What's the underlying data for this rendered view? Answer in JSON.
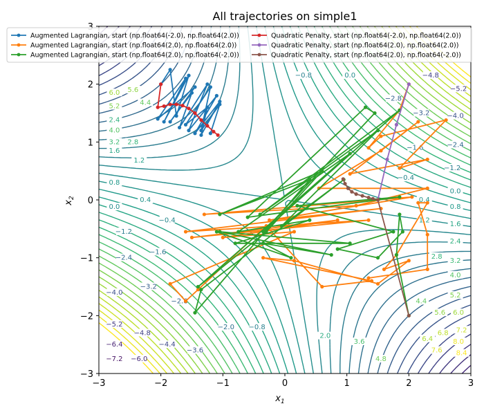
{
  "chart_data": {
    "type": "line",
    "title": "All trajectories on simple1",
    "xlabel_base": "x",
    "xlabel_sub": "1",
    "ylabel_base": "x",
    "ylabel_sub": "2",
    "xlim": [
      -3,
      3
    ],
    "ylim": [
      -3,
      3
    ],
    "x_ticks": [
      -3,
      -2,
      -1,
      0,
      1,
      2,
      3
    ],
    "y_ticks": [
      -3,
      -2,
      -1,
      0,
      1,
      2,
      3
    ],
    "x_tick_labels": [
      "−3",
      "−2",
      "−1",
      "0",
      "1",
      "2",
      "3"
    ],
    "y_tick_labels": [
      "−3",
      "−2",
      "−1",
      "0",
      "1",
      "2",
      "3"
    ],
    "legend_position": "top",
    "contour": {
      "function": "f(x1,x2) = x1*x2 + 0.2*(x1^2 + x2^2) scaled",
      "level_step": 0.4,
      "level_min": -8.0,
      "level_max": 8.4,
      "colormap": "viridis"
    },
    "contour_labels": [
      {
        "text": "−7.2",
        "x": -2.75,
        "y": -2.75
      },
      {
        "text": "−6.4",
        "x": -2.75,
        "y": -2.5
      },
      {
        "text": "−6.0",
        "x": -2.35,
        "y": -2.75
      },
      {
        "text": "−5.2",
        "x": -2.75,
        "y": -2.15
      },
      {
        "text": "−4.8",
        "x": -2.3,
        "y": -2.3
      },
      {
        "text": "−4.4",
        "x": -1.9,
        "y": -2.5
      },
      {
        "text": "−4.0",
        "x": -2.75,
        "y": -1.6
      },
      {
        "text": "−3.6",
        "x": -1.45,
        "y": -2.6
      },
      {
        "text": "−3.2",
        "x": -2.2,
        "y": -1.5
      },
      {
        "text": "−2.8",
        "x": -1.7,
        "y": -1.75
      },
      {
        "text": "−2.4",
        "x": -2.6,
        "y": -1.0
      },
      {
        "text": "−2.0",
        "x": -0.95,
        "y": -2.2
      },
      {
        "text": "−1.6",
        "x": -2.05,
        "y": -0.9
      },
      {
        "text": "−1.2",
        "x": -2.6,
        "y": -0.55
      },
      {
        "text": "−0.8",
        "x": -0.45,
        "y": -2.2
      },
      {
        "text": "−0.4",
        "x": -1.9,
        "y": -0.35
      },
      {
        "text": "0.0",
        "x": -2.75,
        "y": -0.12
      },
      {
        "text": "0.4",
        "x": -2.25,
        "y": 0.0
      },
      {
        "text": "0.8",
        "x": -2.75,
        "y": 0.3
      },
      {
        "text": "1.2",
        "x": -2.35,
        "y": 0.68
      },
      {
        "text": "1.6",
        "x": -2.75,
        "y": 0.85
      },
      {
        "text": "2.0",
        "x": 0.65,
        "y": -2.35
      },
      {
        "text": "2.4",
        "x": -2.75,
        "y": 1.38
      },
      {
        "text": "2.8",
        "x": -2.45,
        "y": 1.0
      },
      {
        "text": "3.2",
        "x": -2.75,
        "y": 1.0
      },
      {
        "text": "3.6",
        "x": 1.2,
        "y": -2.45
      },
      {
        "text": "4.0",
        "x": -2.75,
        "y": 1.2
      },
      {
        "text": "4.4",
        "x": -2.25,
        "y": 1.68
      },
      {
        "text": "4.8",
        "x": 1.55,
        "y": -2.75
      },
      {
        "text": "5.2",
        "x": -2.75,
        "y": 1.62
      },
      {
        "text": "5.6",
        "x": -2.45,
        "y": 1.9
      },
      {
        "text": "6.0",
        "x": -2.75,
        "y": 1.85
      },
      {
        "text": "−4.8",
        "x": 2.35,
        "y": 2.15
      },
      {
        "text": "−5.2",
        "x": 2.8,
        "y": 1.92
      },
      {
        "text": "−4.0",
        "x": 2.75,
        "y": 1.45
      },
      {
        "text": "−2.8",
        "x": 1.75,
        "y": 1.75
      },
      {
        "text": "−3.2",
        "x": 2.2,
        "y": 1.5
      },
      {
        "text": "−2.4",
        "x": 2.75,
        "y": 0.95
      },
      {
        "text": "−1.6",
        "x": 2.1,
        "y": 0.9
      },
      {
        "text": "−1.2",
        "x": 2.7,
        "y": 0.55
      },
      {
        "text": "−0.4",
        "x": 1.95,
        "y": 0.38
      },
      {
        "text": "0.0",
        "x": 2.75,
        "y": 0.15
      },
      {
        "text": "0.4",
        "x": 2.25,
        "y": 0.0
      },
      {
        "text": "0.8",
        "x": 2.75,
        "y": -0.12
      },
      {
        "text": "1.2",
        "x": 2.25,
        "y": -0.35
      },
      {
        "text": "1.6",
        "x": 2.75,
        "y": -0.42
      },
      {
        "text": "2.4",
        "x": 2.75,
        "y": -0.72
      },
      {
        "text": "2.8",
        "x": 2.45,
        "y": -0.98
      },
      {
        "text": "3.2",
        "x": 2.75,
        "y": -1.05
      },
      {
        "text": "4.0",
        "x": 2.75,
        "y": -1.3
      },
      {
        "text": "4.4",
        "x": 2.2,
        "y": -1.75
      },
      {
        "text": "5.2",
        "x": 2.75,
        "y": -1.65
      },
      {
        "text": "5.6",
        "x": 2.5,
        "y": -1.95
      },
      {
        "text": "6.0",
        "x": 2.8,
        "y": -1.95
      },
      {
        "text": "6.4",
        "x": 2.3,
        "y": -2.4
      },
      {
        "text": "6.8",
        "x": 2.55,
        "y": -2.3
      },
      {
        "text": "7.2",
        "x": 2.85,
        "y": -2.25
      },
      {
        "text": "7.6",
        "x": 2.45,
        "y": -2.6
      },
      {
        "text": "8.0",
        "x": 2.8,
        "y": -2.45
      },
      {
        "text": "8.4",
        "x": 2.85,
        "y": -2.65
      },
      {
        "text": "−0.8",
        "x": 0.3,
        "y": 2.15
      },
      {
        "text": "0.0",
        "x": 1.05,
        "y": 2.15
      }
    ],
    "series": [
      {
        "name": "Augmented Lagrangian, start (np.float64(-2.0), np.float64(2.0))",
        "color": "#1f77b4",
        "points": [
          [
            -2.0,
            2.0
          ],
          [
            -1.85,
            2.25
          ],
          [
            -1.75,
            1.45
          ],
          [
            -1.55,
            2.15
          ],
          [
            -1.95,
            1.35
          ],
          [
            -1.6,
            2.1
          ],
          [
            -2.05,
            1.4
          ],
          [
            -1.45,
            1.95
          ],
          [
            -1.85,
            1.35
          ],
          [
            -1.5,
            1.85
          ],
          [
            -1.7,
            1.25
          ],
          [
            -1.25,
            2.0
          ],
          [
            -1.55,
            1.2
          ],
          [
            -1.1,
            1.8
          ],
          [
            -1.45,
            1.15
          ],
          [
            -1.05,
            1.7
          ],
          [
            -1.35,
            1.12
          ],
          [
            -1.25,
            1.6
          ],
          [
            -1.6,
            1.3
          ],
          [
            -1.2,
            1.95
          ],
          [
            -1.35,
            1.2
          ],
          [
            -1.05,
            1.65
          ],
          [
            -1.2,
            1.15
          ]
        ]
      },
      {
        "name": "Augmented Lagrangian, start (np.float64(2.0), np.float64(2.0))",
        "color": "#ff7f0e",
        "points": [
          [
            2.0,
            2.0
          ],
          [
            1.85,
            1.55
          ],
          [
            1.35,
            0.9
          ],
          [
            1.55,
            1.1
          ],
          [
            2.6,
            1.38
          ],
          [
            1.85,
            0.55
          ],
          [
            2.3,
            0.7
          ],
          [
            1.05,
            0.45
          ],
          [
            2.15,
            1.35
          ],
          [
            1.55,
            0.85
          ],
          [
            0.55,
            0.2
          ],
          [
            2.3,
            0.2
          ],
          [
            1.15,
            -0.1
          ],
          [
            -1.3,
            -0.25
          ],
          [
            2.05,
            0.05
          ],
          [
            -0.25,
            -0.35
          ],
          [
            1.55,
            -0.15
          ],
          [
            -1.6,
            -0.55
          ],
          [
            1.35,
            -0.35
          ],
          [
            -1.5,
            -0.65
          ],
          [
            0.85,
            -0.35
          ],
          [
            -1.0,
            -0.65
          ],
          [
            0.15,
            -0.55
          ],
          [
            -1.85,
            -1.45
          ],
          [
            -1.6,
            -1.75
          ],
          [
            -1.4,
            -1.55
          ],
          [
            -0.3,
            -0.45
          ],
          [
            0.6,
            -1.5
          ],
          [
            1.4,
            -1.4
          ],
          [
            -0.35,
            -1.0
          ],
          [
            0.15,
            -1.05
          ],
          [
            1.5,
            -1.45
          ],
          [
            2.0,
            -1.05
          ],
          [
            1.6,
            -1.2
          ],
          [
            1.8,
            -0.95
          ],
          [
            2.3,
            -0.05
          ],
          [
            2.15,
            -0.05
          ],
          [
            2.3,
            -0.6
          ],
          [
            2.3,
            -1.2
          ],
          [
            1.35,
            -1.35
          ]
        ]
      },
      {
        "name": "Augmented Lagrangian, start (np.float64(2.0), np.float64(-2.0))",
        "color": "#2ca02c",
        "points": [
          [
            2.0,
            -2.0
          ],
          [
            1.8,
            -0.95
          ],
          [
            1.85,
            -0.25
          ],
          [
            1.9,
            -0.55
          ],
          [
            1.5,
            -1.0
          ],
          [
            0.85,
            -0.85
          ],
          [
            1.75,
            -0.55
          ],
          [
            0.2,
            -0.1
          ],
          [
            1.85,
            0.05
          ],
          [
            -0.6,
            -0.3
          ],
          [
            1.3,
            1.6
          ],
          [
            1.45,
            1.5
          ],
          [
            -0.35,
            -0.55
          ],
          [
            1.85,
            1.55
          ],
          [
            -0.4,
            -0.25
          ],
          [
            1.5,
            1.2
          ],
          [
            -0.05,
            -0.45
          ],
          [
            0.95,
            0.35
          ],
          [
            -1.35,
            -1.55
          ],
          [
            -1.45,
            -1.95
          ],
          [
            0.4,
            0.35
          ],
          [
            -1.05,
            -0.25
          ],
          [
            0.6,
            0.5
          ],
          [
            -0.3,
            -0.55
          ],
          [
            -1.4,
            -1.5
          ],
          [
            1.05,
            0.8
          ],
          [
            -0.75,
            -0.55
          ],
          [
            0.4,
            -0.35
          ],
          [
            -0.8,
            -0.75
          ],
          [
            1.05,
            -0.75
          ],
          [
            -1.05,
            -0.55
          ],
          [
            0.75,
            -0.95
          ],
          [
            -0.35,
            -0.75
          ],
          [
            0.1,
            -1.0
          ],
          [
            -1.1,
            -0.55
          ]
        ]
      },
      {
        "name": "Quadratic Penalty, start (np.float64(-2.0), np.float64(2.0))",
        "color": "#d62728",
        "points": [
          [
            -2.0,
            2.0
          ],
          [
            -2.05,
            1.6
          ],
          [
            -1.95,
            1.62
          ],
          [
            -1.85,
            1.65
          ],
          [
            -1.75,
            1.65
          ],
          [
            -1.65,
            1.63
          ],
          [
            -1.55,
            1.58
          ],
          [
            -1.45,
            1.5
          ],
          [
            -1.35,
            1.38
          ],
          [
            -1.25,
            1.28
          ],
          [
            -1.15,
            1.18
          ],
          [
            -1.08,
            1.12
          ]
        ]
      },
      {
        "name": "Quadratic Penalty, start (np.float64(2.0), np.float64(2.0))",
        "color": "#9467bd",
        "points": [
          [
            2.0,
            2.0
          ],
          [
            1.8,
            1.3
          ],
          [
            1.65,
            0.7
          ],
          [
            1.5,
            0.0
          ]
        ]
      },
      {
        "name": "Quadratic Penalty, start (np.float64(2.0), np.float64(-2.0))",
        "color": "#8c564b",
        "points": [
          [
            2.0,
            -2.0
          ],
          [
            1.5,
            0.0
          ],
          [
            1.42,
            0.02
          ],
          [
            1.35,
            0.04
          ],
          [
            1.25,
            0.07
          ],
          [
            1.15,
            0.1
          ],
          [
            1.08,
            0.14
          ],
          [
            1.02,
            0.2
          ],
          [
            0.97,
            0.28
          ],
          [
            0.94,
            0.36
          ]
        ]
      }
    ]
  }
}
